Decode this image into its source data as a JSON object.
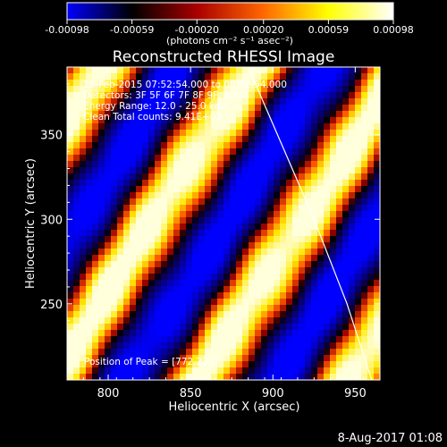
{
  "colorbar": {
    "ticks": [
      "-0.00098",
      "-0.00059",
      "-0.00020",
      "0.00020",
      "0.00059",
      "0.00098"
    ],
    "tick_values": [
      -0.00098,
      -0.00059,
      -0.0002,
      0.0002,
      0.00059,
      0.00098
    ],
    "range": [
      -0.00098,
      0.00098
    ],
    "unit_label": "(photons cm⁻² s⁻¹ asec⁻²)",
    "colors": [
      "#0000ff",
      "#000000",
      "#aa0000",
      "#ff6600",
      "#ffff00",
      "#ffffff"
    ]
  },
  "chart_data": {
    "type": "heatmap",
    "title": "Reconstructed RHESSI Image",
    "xlabel": "Heliocentric X (arcsec)",
    "ylabel": "Heliocentric Y (arcsec)",
    "xlim": [
      775,
      965
    ],
    "ylim": [
      205,
      390
    ],
    "xticks": [
      800,
      850,
      900,
      950
    ],
    "yticks": [
      250,
      300,
      350
    ],
    "annotations": [
      "19-Feb-2015 07:52:54.000  to  08:02:54.000",
      "Detectors: 3F 5F 6F 7F 8F 9F, Att 0",
      "Energy Range: 12.0 - 25.0 keV",
      "Clean    Total counts: 9.41E+03"
    ],
    "peak_label": "Position of Peak = [772,232]",
    "limb": {
      "points": [
        [
          885,
          390
        ],
        [
          905,
          345
        ],
        [
          925,
          300
        ],
        [
          945,
          250
        ],
        [
          960,
          205
        ]
      ]
    },
    "pattern": {
      "description": "diagonal fringe pattern, bands oriented lower-left to upper-right",
      "bands": [
        {
          "offset": 0,
          "level": "max"
        },
        {
          "offset": 1,
          "level": "min"
        },
        {
          "offset": 2,
          "level": "min"
        },
        {
          "offset": 3,
          "level": "max"
        }
      ]
    }
  },
  "footer": {
    "date": "8-Aug-2017 01:08"
  }
}
